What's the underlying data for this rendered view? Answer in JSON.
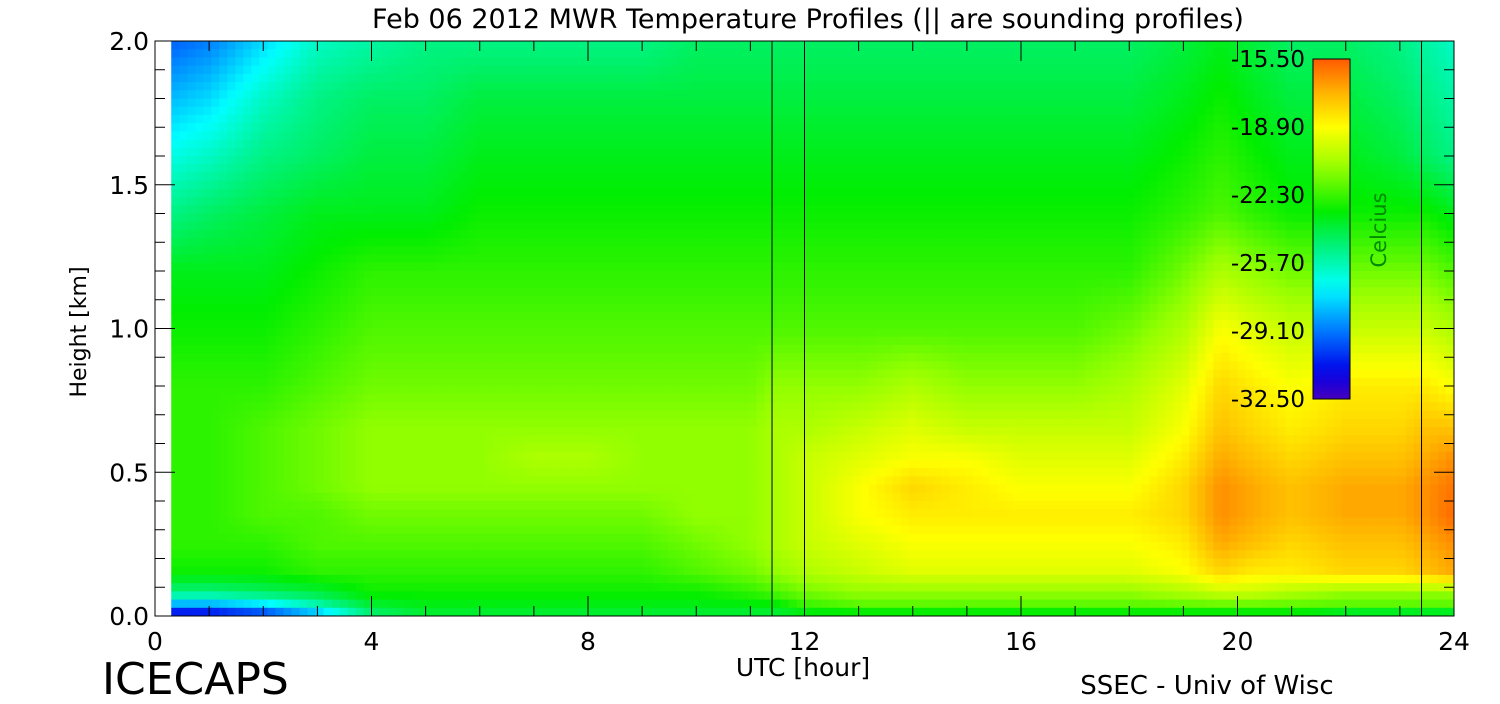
{
  "chart_data": {
    "type": "heatmap",
    "title": "Feb 06 2012 MWR Temperature Profiles (|| are sounding profiles)",
    "xlabel": "UTC [hour]",
    "ylabel": "Height [km]",
    "xlim": [
      0,
      24
    ],
    "ylim": [
      0,
      2.0
    ],
    "x_ticks": [
      "0",
      "4",
      "8",
      "12",
      "16",
      "20",
      "24"
    ],
    "y_ticks": [
      "0.0",
      "0.5",
      "1.0",
      "1.5",
      "2.0"
    ],
    "colorbar": {
      "label": "Celcius",
      "range": [
        -32.5,
        -15.5
      ],
      "ticks": [
        "-15.50",
        "-18.90",
        "-22.30",
        "-25.70",
        "-29.10",
        "-32.50"
      ]
    },
    "data_x_range": [
      0.3,
      24
    ],
    "sounding_profiles_utc": [
      11.4,
      12.0,
      23.4
    ],
    "heights_km": [
      0.0,
      0.03,
      0.08,
      0.15,
      0.25,
      0.35,
      0.45,
      0.55,
      0.65,
      0.8,
      1.0,
      1.2,
      1.4,
      1.6,
      1.8,
      2.0
    ],
    "times_utc": [
      0.3,
      1,
      2,
      3,
      4,
      5,
      6,
      7,
      8,
      9,
      10,
      11,
      11.5,
      12,
      13,
      14,
      15,
      16,
      17,
      18,
      19,
      19.7,
      20.3,
      21,
      22,
      23,
      23.5,
      24
    ],
    "temperature_c": [
      [
        -32,
        -32,
        -31,
        -29,
        -25,
        -24,
        -24,
        -24,
        -24,
        -24,
        -24,
        -24,
        -24,
        -24,
        -24,
        -24,
        -24,
        -24,
        -24,
        -24,
        -24,
        -24,
        -24,
        -24,
        -25,
        -25,
        -25,
        -25
      ],
      [
        -29,
        -29,
        -28,
        -26,
        -24,
        -23.5,
        -23.5,
        -23.5,
        -23.5,
        -23.5,
        -23.5,
        -23.5,
        -23.5,
        -22.5,
        -22,
        -22,
        -22,
        -22,
        -22,
        -22,
        -22,
        -22,
        -22,
        -22,
        -22,
        -22,
        -22,
        -22
      ],
      [
        -25,
        -25,
        -24.5,
        -24,
        -23,
        -23,
        -23,
        -23,
        -23,
        -23,
        -23,
        -22.5,
        -22,
        -21.5,
        -21,
        -21,
        -21,
        -21,
        -21,
        -21,
        -20.5,
        -20,
        -20,
        -20.5,
        -21,
        -21,
        -21,
        -21
      ],
      [
        -23,
        -23,
        -23,
        -22.5,
        -22.5,
        -22.5,
        -22.5,
        -22.5,
        -22.5,
        -22.5,
        -22,
        -21.5,
        -21,
        -20.5,
        -20,
        -19.5,
        -19.5,
        -19.5,
        -19.5,
        -19.5,
        -19,
        -18,
        -18.5,
        -18.5,
        -18,
        -18,
        -17.5,
        -17
      ],
      [
        -22.5,
        -22.5,
        -22.5,
        -22,
        -22,
        -22,
        -22,
        -22,
        -22,
        -22,
        -21.5,
        -21,
        -20.5,
        -20,
        -19.5,
        -19,
        -19,
        -19,
        -19,
        -19,
        -18.5,
        -17,
        -17.5,
        -18,
        -17.5,
        -17.5,
        -17,
        -16.5
      ],
      [
        -22.5,
        -22.5,
        -22,
        -22,
        -21.5,
        -21.5,
        -21.5,
        -21.5,
        -21.5,
        -21.5,
        -21,
        -21,
        -20.5,
        -20,
        -19,
        -18.5,
        -18.5,
        -18.5,
        -18.5,
        -18.5,
        -18,
        -16.5,
        -17,
        -17.5,
        -17,
        -17,
        -16.5,
        -15.8
      ],
      [
        -22.5,
        -22.5,
        -22,
        -21.5,
        -21,
        -21,
        -21,
        -21,
        -21,
        -21,
        -21,
        -21,
        -20.5,
        -20,
        -19,
        -18,
        -18.5,
        -19,
        -19,
        -19,
        -18,
        -16.5,
        -17,
        -17.5,
        -17,
        -17,
        -16.5,
        -16
      ],
      [
        -22.5,
        -22.5,
        -22,
        -21.5,
        -21,
        -21,
        -21,
        -20.5,
        -20.5,
        -21,
        -21,
        -21,
        -20.5,
        -20,
        -19.5,
        -19,
        -19,
        -19.5,
        -19.5,
        -19.5,
        -18.5,
        -17,
        -17.5,
        -18,
        -17.5,
        -17.5,
        -17,
        -16.5
      ],
      [
        -22.5,
        -22.5,
        -22,
        -21.5,
        -21,
        -21,
        -21,
        -21,
        -21,
        -21,
        -21,
        -21,
        -20.5,
        -20.5,
        -20,
        -19.5,
        -20,
        -20,
        -20,
        -20,
        -19,
        -17.5,
        -18,
        -18.5,
        -18,
        -18,
        -17.5,
        -17.5
      ],
      [
        -22.5,
        -22.5,
        -22.5,
        -22,
        -21.5,
        -21.5,
        -21.5,
        -21.5,
        -21.5,
        -21.5,
        -21.5,
        -21.5,
        -21,
        -21,
        -21,
        -20.5,
        -21,
        -21,
        -21,
        -20.5,
        -19.5,
        -18,
        -18.5,
        -19,
        -18.5,
        -18.5,
        -18.5,
        -19
      ],
      [
        -23,
        -23,
        -23,
        -22.5,
        -22,
        -22,
        -22,
        -22,
        -22,
        -22,
        -22,
        -22,
        -22,
        -22,
        -22,
        -22,
        -22,
        -22,
        -22,
        -21.5,
        -20.5,
        -19,
        -19.5,
        -20,
        -20,
        -20,
        -20,
        -20.5
      ],
      [
        -23.5,
        -23.5,
        -23.5,
        -23,
        -22.5,
        -22.5,
        -22.5,
        -22.5,
        -22.5,
        -22.5,
        -22.5,
        -22.5,
        -22.5,
        -22.5,
        -22.5,
        -22.5,
        -22.5,
        -22.5,
        -22.5,
        -22.5,
        -21.5,
        -20.5,
        -21,
        -21.5,
        -21.5,
        -21.5,
        -21.5,
        -22
      ],
      [
        -25,
        -24.5,
        -24,
        -23.5,
        -23.5,
        -23.5,
        -23,
        -23,
        -23,
        -23,
        -23,
        -23,
        -23,
        -23,
        -23,
        -23,
        -23,
        -23,
        -23,
        -23,
        -22.5,
        -22,
        -22.5,
        -23,
        -23,
        -23,
        -23,
        -23.5
      ],
      [
        -26.5,
        -26,
        -25,
        -24.5,
        -24,
        -24,
        -23.5,
        -23.5,
        -23.5,
        -23.5,
        -23.5,
        -23.5,
        -23.5,
        -23.5,
        -23.5,
        -23.5,
        -23.5,
        -23.5,
        -23.5,
        -23.5,
        -23,
        -22.5,
        -23,
        -23.5,
        -23.5,
        -24,
        -24.5,
        -25
      ],
      [
        -28,
        -27.5,
        -26,
        -25,
        -24.5,
        -24.5,
        -24,
        -24,
        -24,
        -24,
        -24,
        -24,
        -24,
        -24,
        -24,
        -24,
        -24,
        -24,
        -24,
        -24,
        -23.5,
        -23,
        -23.5,
        -24,
        -24,
        -24.5,
        -25,
        -25.5
      ],
      [
        -29.5,
        -29,
        -27.5,
        -26,
        -25.5,
        -25,
        -25,
        -25,
        -25,
        -25,
        -24.5,
        -24.5,
        -24.5,
        -24.5,
        -24.5,
        -24.5,
        -24.5,
        -24.5,
        -24.5,
        -24.5,
        -24,
        -23.5,
        -24,
        -24.5,
        -24.5,
        -25,
        -25.5,
        -26
      ]
    ]
  },
  "footer": {
    "logo": "ICECAPS",
    "credit": "SSEC - Univ of Wisc"
  }
}
